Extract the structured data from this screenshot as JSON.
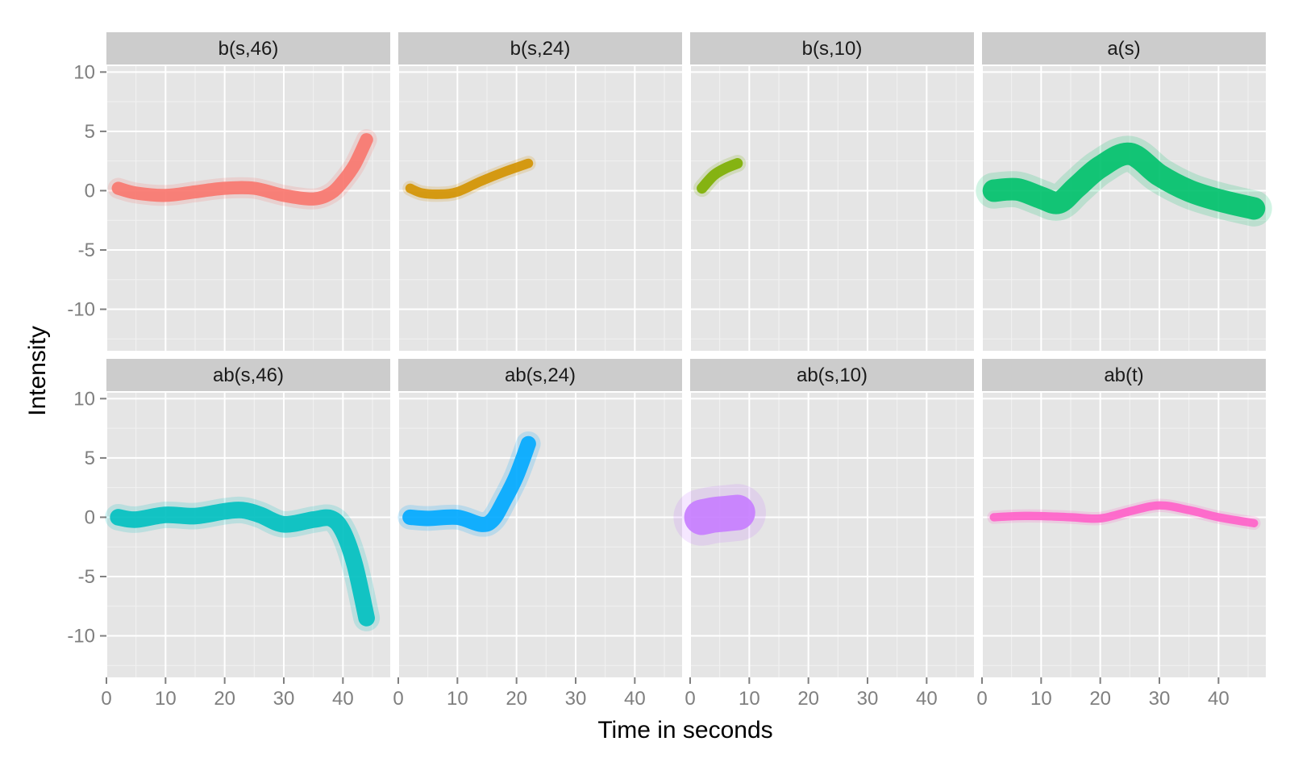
{
  "chart_data": {
    "type": "line",
    "xlabel": "Time in seconds",
    "ylabel": "Intensity",
    "xlim": [
      0,
      48
    ],
    "ylim": [
      -13.5,
      10.5
    ],
    "x_ticks": [
      0,
      10,
      20,
      30,
      40
    ],
    "y_ticks": [
      10,
      5,
      0,
      -5,
      -10
    ],
    "grid": true,
    "legend": "none",
    "layout": {
      "rows": 2,
      "cols": 4
    },
    "panels": [
      {
        "name": "b(s,46)",
        "color": "#F8766D",
        "band": 1.1,
        "x": [
          2,
          5,
          10,
          15,
          20,
          25,
          30,
          35,
          38,
          40,
          42,
          44
        ],
        "y": [
          0.2,
          -0.2,
          -0.4,
          -0.1,
          0.2,
          0.2,
          -0.4,
          -0.7,
          -0.2,
          0.8,
          2.2,
          4.3
        ]
      },
      {
        "name": "b(s,24)",
        "color": "#D39200",
        "band": 0.8,
        "x": [
          2,
          4,
          7,
          10,
          14,
          18,
          22
        ],
        "y": [
          0.2,
          -0.2,
          -0.3,
          -0.1,
          0.8,
          1.6,
          2.3
        ]
      },
      {
        "name": "b(s,10)",
        "color": "#7CAE00",
        "band": 0.9,
        "x": [
          2,
          4,
          6,
          8
        ],
        "y": [
          0.2,
          1.3,
          1.9,
          2.3
        ]
      },
      {
        "name": "a(s)",
        "color": "#00C16B",
        "band": 1.9,
        "x": [
          2,
          6,
          10,
          13,
          16,
          20,
          25,
          30,
          35,
          40,
          46
        ],
        "y": [
          0.0,
          0.1,
          -0.6,
          -1.0,
          0.3,
          2.0,
          3.1,
          1.3,
          0.0,
          -0.8,
          -1.5
        ]
      },
      {
        "name": "ab(s,46)",
        "color": "#00C0C0",
        "band": 1.4,
        "x": [
          2,
          5,
          10,
          15,
          20,
          23,
          26,
          30,
          35,
          38,
          40,
          42,
          44
        ],
        "y": [
          0.0,
          -0.2,
          0.2,
          0.1,
          0.5,
          0.6,
          0.2,
          -0.6,
          -0.2,
          -0.1,
          -1.2,
          -4.0,
          -8.5
        ]
      },
      {
        "name": "ab(s,24)",
        "color": "#00A9FF",
        "band": 1.3,
        "x": [
          2,
          5,
          10,
          14,
          16,
          18,
          20,
          22
        ],
        "y": [
          0.0,
          -0.1,
          0.0,
          -0.6,
          -0.2,
          1.5,
          3.5,
          6.2
        ]
      },
      {
        "name": "ab(s,10)",
        "color": "#C77CFF",
        "band": 3.0,
        "x": [
          2,
          4,
          6,
          8
        ],
        "y": [
          0.0,
          0.2,
          0.3,
          0.4
        ]
      },
      {
        "name": "ab(t)",
        "color": "#FF61C9",
        "band": 0.7,
        "x": [
          2,
          6,
          10,
          15,
          20,
          25,
          30,
          35,
          40,
          46
        ],
        "y": [
          0.0,
          0.1,
          0.1,
          0.0,
          -0.1,
          0.5,
          1.0,
          0.6,
          0.0,
          -0.5
        ]
      }
    ]
  }
}
